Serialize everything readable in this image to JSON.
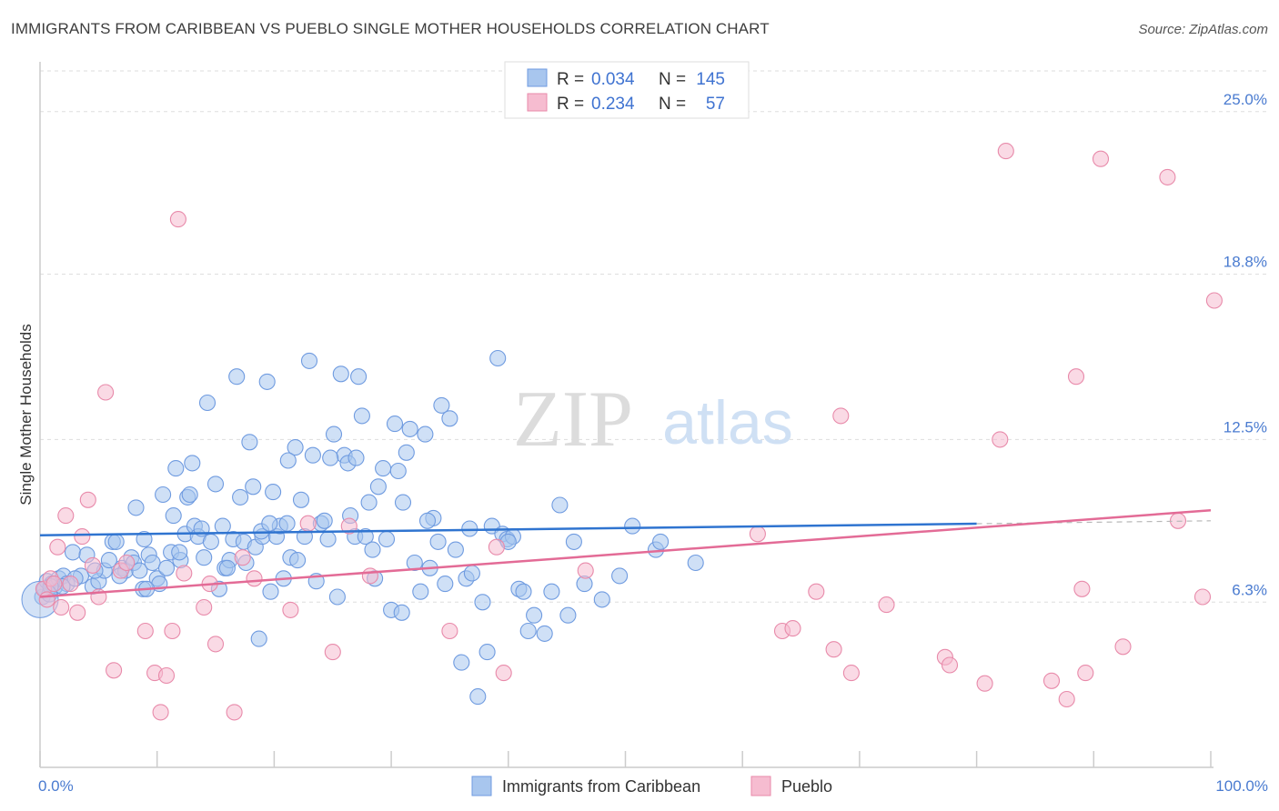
{
  "header": {
    "title": "IMMIGRANTS FROM CARIBBEAN VS PUEBLO SINGLE MOTHER HOUSEHOLDS CORRELATION CHART",
    "source": "Source: ZipAtlas.com"
  },
  "watermark": {
    "zip": "ZIP",
    "atlas": "atlas"
  },
  "legend": {
    "rows": [
      {
        "r_label": "R =",
        "r_value": "0.034",
        "n_label": "N =",
        "n_value": "145"
      },
      {
        "r_label": "R =",
        "r_value": "0.234",
        "n_label": "N =",
        "n_value": "57"
      }
    ]
  },
  "bottom_legend": [
    "Immigrants from Caribbean",
    "Pueblo"
  ],
  "colors": {
    "blue_fill": "#a8c6ee",
    "blue_stroke": "#6f9be0",
    "blue_line": "#2f74d0",
    "pink_fill": "#f6bcd0",
    "pink_stroke": "#e88aaa",
    "pink_line": "#e36b96",
    "grid": "#dddddd",
    "tick_label": "#4a7bd0"
  },
  "chart_data": {
    "type": "scatter",
    "title": "IMMIGRANTS FROM CARIBBEAN VS PUEBLO SINGLE MOTHER HOUSEHOLDS CORRELATION CHART",
    "xlabel": "",
    "ylabel": "Single Mother Households",
    "xlim": [
      0,
      100
    ],
    "ylim": [
      0,
      26.9
    ],
    "x_tick_labels": [
      "0.0%",
      "100.0%"
    ],
    "y_ticks": [
      6.3,
      12.5,
      18.8,
      25.0
    ],
    "y_tick_labels": [
      "6.3%",
      "12.5%",
      "18.8%",
      "25.0%"
    ],
    "grid": true,
    "legend_position": "top-center",
    "series": [
      {
        "name": "Immigrants from Caribbean",
        "R": 0.034,
        "N": 145,
        "trend": {
          "x": [
            0,
            80
          ],
          "y": [
            8.85,
            9.29
          ]
        },
        "points": [
          [
            0.2,
            6.5
          ],
          [
            0.4,
            6.8
          ],
          [
            0.6,
            7.1
          ],
          [
            0.8,
            6.6
          ],
          [
            1.0,
            7.0
          ],
          [
            1.3,
            6.9
          ],
          [
            1.6,
            7.2
          ],
          [
            2.0,
            7.3
          ],
          [
            2.3,
            7.0
          ],
          [
            2.8,
            8.2
          ],
          [
            3.5,
            7.3
          ],
          [
            4.0,
            8.1
          ],
          [
            4.5,
            6.9
          ],
          [
            5.0,
            7.1
          ],
          [
            5.5,
            7.5
          ],
          [
            5.9,
            7.9
          ],
          [
            6.2,
            8.6
          ],
          [
            6.5,
            8.6
          ],
          [
            7.0,
            7.6
          ],
          [
            7.3,
            7.5
          ],
          [
            7.8,
            8.0
          ],
          [
            8.0,
            7.8
          ],
          [
            8.2,
            9.9
          ],
          [
            8.5,
            7.5
          ],
          [
            8.8,
            6.8
          ],
          [
            8.9,
            8.7
          ],
          [
            9.3,
            8.1
          ],
          [
            9.6,
            7.8
          ],
          [
            10.0,
            7.2
          ],
          [
            10.2,
            7.0
          ],
          [
            10.5,
            10.4
          ],
          [
            10.8,
            7.6
          ],
          [
            11.2,
            8.2
          ],
          [
            11.4,
            9.6
          ],
          [
            11.6,
            11.4
          ],
          [
            12.0,
            7.9
          ],
          [
            12.4,
            8.9
          ],
          [
            12.6,
            10.3
          ],
          [
            12.8,
            10.4
          ],
          [
            13.0,
            11.6
          ],
          [
            13.2,
            9.2
          ],
          [
            13.5,
            8.8
          ],
          [
            14.0,
            8.0
          ],
          [
            14.3,
            13.9
          ],
          [
            14.6,
            8.6
          ],
          [
            15.0,
            10.8
          ],
          [
            15.3,
            6.8
          ],
          [
            15.6,
            9.2
          ],
          [
            15.8,
            7.6
          ],
          [
            16.2,
            7.9
          ],
          [
            16.5,
            8.7
          ],
          [
            16.8,
            14.9
          ],
          [
            17.1,
            10.3
          ],
          [
            17.4,
            8.6
          ],
          [
            17.6,
            7.8
          ],
          [
            17.9,
            12.4
          ],
          [
            18.2,
            10.7
          ],
          [
            18.4,
            8.4
          ],
          [
            18.7,
            4.9
          ],
          [
            19.0,
            8.8
          ],
          [
            19.4,
            14.7
          ],
          [
            19.7,
            6.7
          ],
          [
            19.9,
            10.5
          ],
          [
            20.2,
            8.8
          ],
          [
            20.5,
            9.2
          ],
          [
            20.8,
            7.2
          ],
          [
            21.1,
            9.3
          ],
          [
            21.4,
            8.0
          ],
          [
            21.8,
            12.2
          ],
          [
            22.3,
            10.2
          ],
          [
            22.6,
            8.8
          ],
          [
            23.0,
            15.5
          ],
          [
            23.3,
            11.9
          ],
          [
            23.6,
            7.1
          ],
          [
            24.0,
            9.3
          ],
          [
            24.3,
            9.4
          ],
          [
            24.6,
            8.7
          ],
          [
            25.1,
            12.7
          ],
          [
            25.4,
            6.5
          ],
          [
            25.7,
            15.0
          ],
          [
            26.0,
            11.9
          ],
          [
            26.3,
            11.6
          ],
          [
            26.5,
            9.6
          ],
          [
            26.9,
            8.8
          ],
          [
            27.2,
            14.9
          ],
          [
            27.5,
            13.4
          ],
          [
            27.8,
            8.8
          ],
          [
            28.1,
            10.1
          ],
          [
            28.4,
            8.3
          ],
          [
            28.6,
            7.2
          ],
          [
            28.9,
            10.7
          ],
          [
            29.3,
            11.4
          ],
          [
            29.6,
            8.7
          ],
          [
            30.0,
            6.0
          ],
          [
            30.3,
            13.1
          ],
          [
            30.6,
            11.3
          ],
          [
            31.0,
            10.1
          ],
          [
            31.3,
            12.0
          ],
          [
            31.6,
            12.9
          ],
          [
            32.0,
            7.8
          ],
          [
            32.5,
            6.7
          ],
          [
            32.9,
            12.7
          ],
          [
            33.3,
            7.6
          ],
          [
            33.6,
            9.5
          ],
          [
            34.0,
            8.6
          ],
          [
            34.3,
            13.8
          ],
          [
            34.6,
            7.0
          ],
          [
            35.0,
            13.3
          ],
          [
            35.5,
            8.3
          ],
          [
            36.0,
            4.0
          ],
          [
            36.4,
            7.2
          ],
          [
            36.9,
            7.4
          ],
          [
            37.4,
            2.7
          ],
          [
            37.8,
            6.3
          ],
          [
            38.2,
            4.4
          ],
          [
            38.6,
            9.2
          ],
          [
            39.1,
            15.6
          ],
          [
            39.5,
            8.9
          ],
          [
            39.9,
            8.7
          ],
          [
            40.4,
            8.8
          ],
          [
            40.9,
            6.8
          ],
          [
            41.3,
            6.7
          ],
          [
            41.7,
            5.2
          ],
          [
            42.2,
            5.8
          ],
          [
            43.1,
            5.1
          ],
          [
            43.7,
            6.7
          ],
          [
            44.4,
            10.0
          ],
          [
            45.1,
            5.8
          ],
          [
            45.6,
            8.6
          ],
          [
            46.5,
            7.0
          ],
          [
            48.0,
            6.4
          ],
          [
            49.5,
            7.3
          ],
          [
            50.6,
            9.2
          ],
          [
            52.6,
            8.3
          ],
          [
            53.0,
            8.6
          ],
          [
            56.0,
            7.8
          ],
          [
            40.0,
            8.6
          ],
          [
            30.9,
            5.9
          ],
          [
            24.8,
            11.8
          ],
          [
            22.0,
            7.9
          ],
          [
            18.9,
            9.0
          ],
          [
            16.0,
            7.6
          ],
          [
            11.9,
            8.2
          ],
          [
            9.1,
            6.8
          ],
          [
            6.8,
            7.3
          ],
          [
            4.7,
            7.5
          ],
          [
            3.0,
            7.2
          ],
          [
            1.9,
            6.9
          ],
          [
            0.9,
            6.9
          ],
          [
            13.8,
            9.1
          ],
          [
            27.0,
            11.8
          ],
          [
            33.1,
            9.4
          ],
          [
            36.7,
            9.1
          ],
          [
            19.6,
            9.3
          ],
          [
            21.2,
            11.7
          ]
        ]
      },
      {
        "name": "Pueblo",
        "R": 0.234,
        "N": 57,
        "trend": {
          "x": [
            0,
            100
          ],
          "y": [
            6.5,
            9.8
          ]
        },
        "points": [
          [
            0.3,
            6.8
          ],
          [
            0.6,
            6.4
          ],
          [
            0.9,
            7.2
          ],
          [
            1.2,
            7.0
          ],
          [
            1.5,
            8.4
          ],
          [
            1.8,
            6.1
          ],
          [
            2.2,
            9.6
          ],
          [
            2.6,
            7.0
          ],
          [
            3.2,
            5.9
          ],
          [
            3.6,
            8.8
          ],
          [
            4.1,
            10.2
          ],
          [
            4.5,
            7.7
          ],
          [
            5.0,
            6.5
          ],
          [
            5.6,
            14.3
          ],
          [
            6.3,
            3.7
          ],
          [
            6.9,
            7.5
          ],
          [
            7.4,
            7.8
          ],
          [
            9.0,
            5.2
          ],
          [
            9.8,
            3.6
          ],
          [
            10.3,
            2.1
          ],
          [
            10.8,
            3.5
          ],
          [
            11.3,
            5.2
          ],
          [
            11.8,
            20.9
          ],
          [
            12.3,
            7.4
          ],
          [
            14.0,
            6.1
          ],
          [
            14.5,
            7.0
          ],
          [
            15.0,
            4.7
          ],
          [
            16.6,
            2.1
          ],
          [
            17.3,
            8.0
          ],
          [
            18.3,
            7.2
          ],
          [
            21.4,
            6.0
          ],
          [
            22.9,
            9.3
          ],
          [
            25.0,
            4.4
          ],
          [
            26.4,
            9.2
          ],
          [
            28.2,
            7.3
          ],
          [
            35.0,
            5.2
          ],
          [
            39.0,
            8.4
          ],
          [
            39.6,
            3.6
          ],
          [
            46.6,
            7.5
          ],
          [
            61.3,
            8.9
          ],
          [
            63.4,
            5.2
          ],
          [
            64.3,
            5.3
          ],
          [
            66.3,
            6.7
          ],
          [
            67.8,
            4.5
          ],
          [
            68.4,
            13.4
          ],
          [
            69.3,
            3.6
          ],
          [
            72.3,
            6.2
          ],
          [
            77.3,
            4.2
          ],
          [
            77.7,
            3.9
          ],
          [
            80.7,
            3.2
          ],
          [
            82.0,
            12.5
          ],
          [
            82.5,
            23.5
          ],
          [
            86.4,
            3.3
          ],
          [
            87.7,
            2.6
          ],
          [
            88.5,
            14.9
          ],
          [
            89.0,
            6.8
          ],
          [
            89.3,
            3.6
          ],
          [
            90.6,
            23.2
          ],
          [
            92.5,
            4.6
          ],
          [
            96.3,
            22.5
          ],
          [
            97.2,
            9.4
          ],
          [
            99.3,
            6.5
          ],
          [
            100.3,
            17.8
          ]
        ]
      }
    ]
  }
}
